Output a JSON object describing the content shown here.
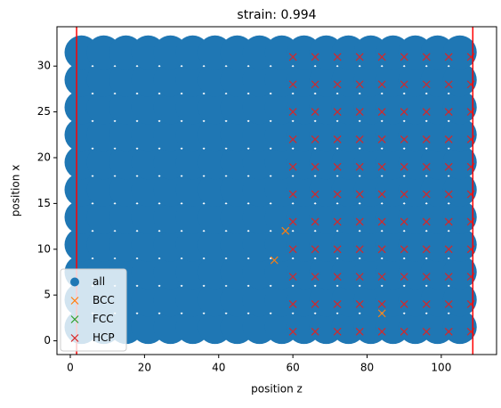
{
  "chart_data": {
    "type": "scatter",
    "title": "strain: 0.994",
    "xlabel": "position z",
    "ylabel": "position x",
    "xlim": [
      -3.6,
      114.9
    ],
    "ylim": [
      -1.5,
      34.3
    ],
    "xticks": [
      0,
      20,
      40,
      60,
      80,
      100
    ],
    "yticks": [
      0,
      5,
      10,
      15,
      20,
      25,
      30
    ],
    "vlines": [
      1.7,
      108.5
    ],
    "vline_color": "#ff0000",
    "legend": "lower left",
    "series": [
      {
        "name": "all",
        "color": "#1f77b4",
        "marker": "o",
        "x": [
          3,
          3,
          3,
          3,
          3,
          3,
          3,
          3,
          3,
          3,
          3,
          9,
          9,
          9,
          9,
          9,
          9,
          9,
          9,
          9,
          9,
          9,
          15,
          15,
          15,
          15,
          15,
          15,
          15,
          15,
          15,
          15,
          15,
          21,
          21,
          21,
          21,
          21,
          21,
          21,
          21,
          21,
          21,
          21,
          27,
          27,
          27,
          27,
          27,
          27,
          27,
          27,
          27,
          27,
          27,
          33,
          33,
          33,
          33,
          33,
          33,
          33,
          33,
          33,
          33,
          33,
          39,
          39,
          39,
          39,
          39,
          39,
          39,
          39,
          39,
          39,
          39,
          45,
          45,
          45,
          45,
          45,
          45,
          45,
          45,
          45,
          45,
          45,
          51,
          51,
          51,
          51,
          51,
          51,
          51,
          51,
          51,
          51,
          51,
          57,
          57,
          57,
          57,
          57,
          57,
          57,
          57,
          57,
          57,
          57,
          63,
          63,
          63,
          63,
          63,
          63,
          63,
          63,
          63,
          63,
          63,
          69,
          69,
          69,
          69,
          69,
          69,
          69,
          69,
          69,
          69,
          69,
          75,
          75,
          75,
          75,
          75,
          75,
          75,
          75,
          75,
          75,
          75,
          81,
          81,
          81,
          81,
          81,
          81,
          81,
          81,
          81,
          81,
          81,
          87,
          87,
          87,
          87,
          87,
          87,
          87,
          87,
          87,
          87,
          87,
          93,
          93,
          93,
          93,
          93,
          93,
          93,
          93,
          93,
          93,
          93,
          99,
          99,
          99,
          99,
          99,
          99,
          99,
          99,
          99,
          99,
          99,
          105,
          105,
          105,
          105,
          105,
          105,
          105,
          105,
          105,
          105,
          105
        ],
        "y": [
          1.5,
          4.5,
          7.5,
          10.5,
          13.5,
          16.5,
          19.5,
          22.5,
          25.5,
          28.5,
          31.5,
          1.5,
          4.5,
          7.5,
          10.5,
          13.5,
          16.5,
          19.5,
          22.5,
          25.5,
          28.5,
          31.5,
          1.5,
          4.5,
          7.5,
          10.5,
          13.5,
          16.5,
          19.5,
          22.5,
          25.5,
          28.5,
          31.5,
          1.5,
          4.5,
          7.5,
          10.5,
          13.5,
          16.5,
          19.5,
          22.5,
          25.5,
          28.5,
          31.5,
          1.5,
          4.5,
          7.5,
          10.5,
          13.5,
          16.5,
          19.5,
          22.5,
          25.5,
          28.5,
          31.5,
          1.5,
          4.5,
          7.5,
          10.5,
          13.5,
          16.5,
          19.5,
          22.5,
          25.5,
          28.5,
          31.5,
          1.5,
          4.5,
          7.5,
          10.5,
          13.5,
          16.5,
          19.5,
          22.5,
          25.5,
          28.5,
          31.5,
          1.5,
          4.5,
          7.5,
          10.5,
          13.5,
          16.5,
          19.5,
          22.5,
          25.5,
          28.5,
          31.5,
          1.5,
          4.5,
          7.5,
          10.5,
          13.5,
          16.5,
          19.5,
          22.5,
          25.5,
          28.5,
          31.5,
          1.5,
          4.5,
          7.5,
          10.5,
          13.5,
          16.5,
          19.5,
          22.5,
          25.5,
          28.5,
          31.5,
          1.5,
          4.5,
          7.5,
          10.5,
          13.5,
          16.5,
          19.5,
          22.5,
          25.5,
          28.5,
          31.5,
          1.5,
          4.5,
          7.5,
          10.5,
          13.5,
          16.5,
          19.5,
          22.5,
          25.5,
          28.5,
          31.5,
          1.5,
          4.5,
          7.5,
          10.5,
          13.5,
          16.5,
          19.5,
          22.5,
          25.5,
          28.5,
          31.5,
          1.5,
          4.5,
          7.5,
          10.5,
          13.5,
          16.5,
          19.5,
          22.5,
          25.5,
          28.5,
          31.5,
          1.5,
          4.5,
          7.5,
          10.5,
          13.5,
          16.5,
          19.5,
          22.5,
          25.5,
          28.5,
          31.5,
          1.5,
          4.5,
          7.5,
          10.5,
          13.5,
          16.5,
          19.5,
          22.5,
          25.5,
          28.5,
          31.5,
          1.5,
          4.5,
          7.5,
          10.5,
          13.5,
          16.5,
          19.5,
          22.5,
          25.5,
          28.5,
          31.5,
          1.5,
          4.5,
          7.5,
          10.5,
          13.5,
          16.5,
          19.5,
          22.5,
          25.5,
          28.5,
          31.5
        ]
      },
      {
        "name": "BCC",
        "color": "#ff7f0e",
        "marker": "x",
        "x": [
          58,
          55,
          84
        ],
        "y": [
          12,
          8.8,
          3
        ]
      },
      {
        "name": "FCC",
        "color": "#2ca02c",
        "marker": "x",
        "x": [],
        "y": []
      },
      {
        "name": "HCP",
        "color": "#d62728",
        "marker": "x",
        "x": [
          60,
          60,
          60,
          60,
          60,
          60,
          60,
          60,
          60,
          60,
          60,
          66,
          66,
          66,
          66,
          66,
          66,
          66,
          66,
          66,
          66,
          66,
          72,
          72,
          72,
          72,
          72,
          72,
          72,
          72,
          72,
          72,
          72,
          78,
          78,
          78,
          78,
          78,
          78,
          78,
          78,
          78,
          78,
          78,
          84,
          84,
          84,
          84,
          84,
          84,
          84,
          84,
          84,
          84,
          84,
          90,
          90,
          90,
          90,
          90,
          90,
          90,
          90,
          90,
          90,
          90,
          96,
          96,
          96,
          96,
          96,
          96,
          96,
          96,
          96,
          96,
          96,
          102,
          102,
          102,
          102,
          102,
          102,
          102,
          102,
          102,
          102,
          102,
          108,
          108,
          108,
          108,
          108,
          108,
          108,
          108,
          108,
          108,
          108
        ],
        "y": [
          1,
          4,
          7,
          10,
          13,
          16,
          19,
          22,
          25,
          28,
          31,
          1,
          4,
          7,
          10,
          13,
          16,
          19,
          22,
          25,
          28,
          31,
          1,
          4,
          7,
          10,
          13,
          16,
          19,
          22,
          25,
          28,
          31,
          1,
          4,
          7,
          10,
          13,
          16,
          19,
          22,
          25,
          28,
          31,
          1,
          4,
          7,
          10,
          13,
          16,
          19,
          22,
          25,
          28,
          31,
          1,
          4,
          7,
          10,
          13,
          16,
          19,
          22,
          25,
          28,
          31,
          1,
          4,
          7,
          10,
          13,
          16,
          19,
          22,
          25,
          28,
          31,
          1,
          4,
          7,
          10,
          13,
          16,
          19,
          22,
          25,
          28,
          31,
          1,
          4,
          7,
          10,
          13,
          16,
          19,
          22,
          25,
          28,
          31
        ]
      }
    ]
  }
}
